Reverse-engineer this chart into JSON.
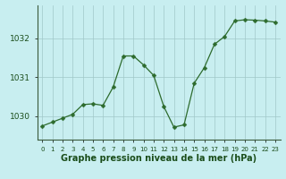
{
  "x": [
    0,
    1,
    2,
    3,
    4,
    5,
    6,
    7,
    8,
    9,
    10,
    11,
    12,
    13,
    14,
    15,
    16,
    17,
    18,
    19,
    20,
    21,
    22,
    23
  ],
  "y": [
    1029.75,
    1029.85,
    1029.95,
    1030.05,
    1030.3,
    1030.32,
    1030.28,
    1030.75,
    1031.55,
    1031.55,
    1031.32,
    1031.05,
    1030.25,
    1029.72,
    1029.78,
    1030.85,
    1031.25,
    1031.85,
    1032.05,
    1032.45,
    1032.48,
    1032.47,
    1032.45,
    1032.42
  ],
  "line_color": "#2d6b2d",
  "marker": "D",
  "marker_size": 2.5,
  "bg_color": "#c8eef0",
  "grid_color": "#a0c8c8",
  "xlabel": "Graphe pression niveau de la mer (hPa)",
  "xlabel_fontsize": 7,
  "yticks": [
    1030,
    1031,
    1032
  ],
  "ytick_fontsize": 6.5,
  "ylim": [
    1029.4,
    1032.85
  ],
  "xlim": [
    -0.5,
    23.5
  ],
  "tick_label_color": "#1a4d1a",
  "xtick_labels": [
    "0",
    "1",
    "2",
    "3",
    "4",
    "5",
    "6",
    "7",
    "8",
    "9",
    "10",
    "11",
    "12",
    "13",
    "14",
    "15",
    "16",
    "17",
    "18",
    "19",
    "20",
    "21",
    "22",
    "23"
  ],
  "xtick_fontsize": 5
}
